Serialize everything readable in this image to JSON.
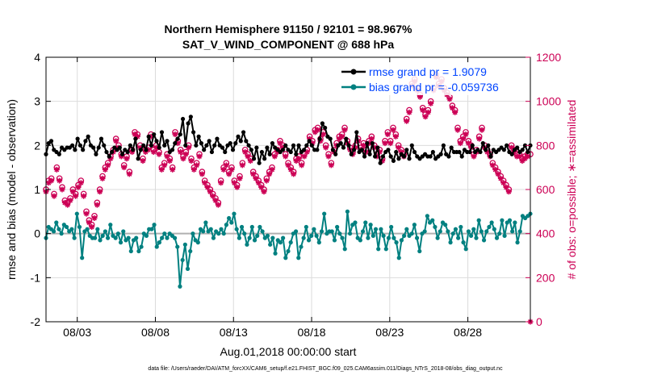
{
  "chart_data": {
    "type": "line",
    "title": "Northern Hemisphere 91150 / 92101 = 98.967%",
    "subtitle": "SAT_V_WIND_COMPONENT @ 688 hPa",
    "xlabel": "Aug.01,2018 00:00:00 start",
    "ylabel_left": "rmse and bias (model - observation)",
    "ylabel_right": "# of obs: o=possible; ∗=assimilated",
    "footer": "data file: /Users/raeder/DAI/ATM_forcXX/CAM6_setup/f.e21.FHIST_BGC.f09_025.CAM6assim.011/Diags_NTrS_2018-08/obs_diag_output.nc",
    "x_tick_labels": [
      "08/03",
      "08/08",
      "08/13",
      "08/18",
      "08/23",
      "08/28"
    ],
    "x_tick_days": [
      3,
      8,
      13,
      18,
      23,
      28
    ],
    "xlim_days": [
      1,
      32
    ],
    "ylim_left": [
      -2,
      4
    ],
    "y_ticks_left": [
      "-2",
      "-1",
      "0",
      "1",
      "2",
      "3",
      "4"
    ],
    "ylim_right": [
      0,
      1200
    ],
    "y_ticks_right": [
      "0",
      "200",
      "400",
      "600",
      "800",
      "1000",
      "1200"
    ],
    "zero_line": 0,
    "legend": {
      "placement": "top-right",
      "rmse_label": "rmse grand pr = 1.9079",
      "bias_label": "bias grand pr = -0.059736"
    },
    "colors": {
      "rmse": "#000000",
      "bias": "#008080",
      "obs": "#cc0055",
      "legend_text": "#0044ff"
    },
    "series": [
      {
        "name": "rmse",
        "values": [
          1.8,
          2.05,
          2.1,
          1.9,
          1.85,
          1.8,
          1.95,
          1.9,
          1.95,
          1.95,
          2.0,
          1.9,
          2.15,
          2.0,
          1.9,
          2.1,
          2.2,
          2.0,
          1.95,
          1.8,
          1.95,
          2.15,
          2.0,
          1.85,
          1.75,
          1.85,
          1.95,
          1.9,
          1.95,
          1.8,
          1.9,
          1.85,
          2.0,
          1.9,
          2.15,
          1.7,
          1.9,
          2.0,
          1.9,
          2.2,
          2.0,
          2.25,
          2.1,
          1.95,
          2.3,
          2.0,
          2.1,
          1.85,
          1.9,
          2.05,
          2.15,
          2.25,
          2.6,
          2.0,
          2.5,
          2.65,
          2.3,
          2.0,
          2.2,
          2.05,
          1.9,
          2.0,
          2.1,
          1.85,
          2.0,
          2.15,
          2.0,
          1.95,
          1.85,
          2.0,
          2.05,
          1.9,
          2.05,
          2.2,
          2.1,
          2.3,
          2.1,
          2.0,
          1.9,
          1.7,
          1.95,
          1.6,
          1.85,
          1.7,
          1.95,
          1.8,
          2.05,
          1.95,
          1.9,
          1.85,
          1.9,
          2.0,
          1.9,
          1.85,
          2.0,
          1.8,
          2.0,
          1.85,
          1.9,
          2.0,
          2.1,
          2.0,
          1.9,
          1.9,
          2.15,
          2.5,
          2.4,
          2.2,
          2.15,
          1.9,
          1.8,
          2.0,
          2.05,
          1.95,
          2.15,
          2.0,
          1.8,
          1.9,
          2.3,
          1.85,
          1.9,
          1.75,
          2.05,
          1.8,
          2.05,
          1.75,
          1.95,
          1.6,
          1.75,
          1.85,
          1.9,
          1.75,
          1.65,
          1.85,
          1.7,
          1.8,
          1.75,
          1.9,
          1.7,
          2.0,
          1.85,
          1.75,
          1.7,
          1.75,
          1.8,
          1.75,
          1.75,
          1.85,
          1.7,
          1.75,
          1.8,
          2.0,
          1.8,
          1.75,
          1.95,
          1.85,
          1.85,
          1.85,
          1.75,
          1.9,
          1.85,
          1.85,
          2.0,
          1.85,
          1.9,
          1.85,
          2.05,
          1.9,
          2.0,
          1.75,
          1.9,
          1.85,
          1.9,
          1.95,
          1.9,
          2.0,
          1.85,
          1.8,
          1.9,
          1.95,
          1.85,
          1.9,
          2.0,
          1.85,
          2.0
        ]
      },
      {
        "name": "bias",
        "values": [
          -0.1,
          0.15,
          0.1,
          0.05,
          0.25,
          0.1,
          0.0,
          0.2,
          0.15,
          0.05,
          0.1,
          -0.1,
          0.45,
          0.15,
          -0.55,
          0.05,
          0.1,
          -0.05,
          -0.1,
          -0.1,
          0.1,
          -0.15,
          -0.05,
          0.05,
          -0.1,
          0.2,
          -0.05,
          -0.1,
          0.0,
          -0.2,
          0.05,
          -0.15,
          -0.1,
          -0.4,
          -0.15,
          -0.1,
          -0.4,
          -0.3,
          0.0,
          -0.05,
          0.1,
          0.1,
          0.2,
          -0.3,
          -0.2,
          -0.1,
          0.0,
          -0.1,
          0.0,
          -0.05,
          -0.1,
          -0.3,
          -1.2,
          -0.6,
          -0.25,
          -0.8,
          -0.4,
          0.0,
          -0.15,
          -0.2,
          0.1,
          0.05,
          0.25,
          0.05,
          0.1,
          -0.1,
          0.05,
          0.0,
          0.1,
          0.0,
          0.2,
          0.35,
          0.25,
          0.45,
          0.1,
          -0.1,
          0.15,
          0.0,
          -0.25,
          -0.1,
          0.15,
          -0.15,
          -0.05,
          0.15,
          0.05,
          -0.1,
          -0.05,
          -0.25,
          -0.1,
          -0.45,
          -0.15,
          -0.2,
          -0.1,
          -0.55,
          -0.4,
          -0.2,
          0.0,
          0.05,
          -0.55,
          -0.3,
          -0.1,
          0.15,
          -0.15,
          -0.05,
          0.1,
          -0.05,
          -0.2,
          0.05,
          0.45,
          0.0,
          0.05,
          0.05,
          -0.15,
          0.15,
          0.0,
          -0.1,
          -0.35,
          0.5,
          0.0,
          0.2,
          0.25,
          -0.1,
          -0.15,
          0.05,
          0.25,
          -0.1,
          0.2,
          -0.05,
          0.1,
          -0.35,
          0.1,
          -0.05,
          -0.35,
          -0.1,
          0.15,
          -0.1,
          -0.2,
          -0.55,
          -0.15,
          -0.05,
          0.1,
          -0.05,
          0.0,
          0.2,
          -0.1,
          -0.4,
          0.0,
          0.05,
          0.4,
          0.25,
          0.3,
          0.15,
          -0.1,
          0.05,
          0.25,
          0.2,
          0.05,
          -0.2,
          0.0,
          0.1,
          -0.1,
          0.15,
          -0.2,
          -0.35,
          0.05,
          -0.05,
          0.1,
          -0.1,
          0.3,
          0.05,
          -0.15,
          0.05,
          0.15,
          0.25,
          0.1,
          -0.1,
          0.0,
          0.3,
          -0.05,
          0.25,
          0.3,
          0.05,
          0.25,
          -0.2,
          0.05,
          0.4,
          0.35,
          0.4,
          0.45
        ]
      },
      {
        "name": "obs_possible",
        "values": [
          600,
          640,
          650,
          580,
          700,
          650,
          610,
          550,
          540,
          560,
          600,
          580,
          620,
          640,
          580,
          500,
          460,
          440,
          480,
          540,
          600,
          660,
          700,
          720,
          750,
          780,
          830,
          800,
          760,
          710,
          750,
          680,
          780,
          860,
          850,
          800,
          740,
          780,
          790,
          850,
          780,
          800,
          770,
          700,
          720,
          760,
          740,
          700,
          860,
          820,
          780,
          750,
          770,
          800,
          740,
          700,
          720,
          760,
          680,
          640,
          620,
          600,
          580,
          560,
          540,
          640,
          700,
          720,
          680,
          700,
          640,
          620,
          660,
          720,
          780,
          760,
          740,
          680,
          660,
          640,
          620,
          600,
          650,
          680,
          700,
          760,
          780,
          820,
          800,
          760,
          720,
          700,
          680,
          740,
          750,
          720,
          760,
          780,
          840,
          820,
          870,
          880,
          830,
          860,
          800,
          760,
          720,
          780,
          810,
          840,
          850,
          880,
          820,
          790,
          770,
          800,
          830,
          790,
          810,
          780,
          820,
          840,
          800,
          760,
          780,
          740,
          820,
          860,
          820,
          880,
          850,
          800,
          780,
          760,
          920,
          960,
          1080,
          1100,
          1060,
          1030,
          970,
          940,
          960,
          1000,
          1060,
          1120,
          1080,
          1100,
          1060,
          1040,
          1020,
          980,
          960,
          880,
          820,
          840,
          860,
          820,
          800,
          760,
          780,
          840,
          880,
          800,
          780,
          760,
          720,
          700,
          680,
          660,
          640,
          620,
          600,
          800,
          780,
          760,
          760,
          740,
          750,
          760,
          760
        ]
      },
      {
        "name": "obs_assimilated",
        "values": [
          590,
          630,
          640,
          570,
          690,
          640,
          600,
          540,
          530,
          550,
          590,
          570,
          610,
          630,
          570,
          490,
          450,
          430,
          470,
          530,
          590,
          650,
          690,
          710,
          740,
          770,
          820,
          790,
          750,
          700,
          740,
          670,
          770,
          850,
          840,
          790,
          730,
          770,
          780,
          840,
          770,
          790,
          760,
          690,
          710,
          750,
          730,
          690,
          850,
          810,
          770,
          740,
          760,
          790,
          730,
          690,
          710,
          750,
          670,
          630,
          610,
          590,
          570,
          550,
          530,
          630,
          690,
          710,
          670,
          690,
          630,
          610,
          650,
          710,
          770,
          750,
          730,
          670,
          650,
          630,
          610,
          590,
          640,
          670,
          690,
          750,
          770,
          810,
          790,
          750,
          710,
          690,
          670,
          730,
          740,
          710,
          750,
          770,
          830,
          810,
          860,
          870,
          820,
          850,
          790,
          750,
          710,
          770,
          800,
          830,
          840,
          870,
          810,
          780,
          760,
          790,
          820,
          780,
          800,
          770,
          810,
          830,
          790,
          750,
          770,
          730,
          810,
          850,
          810,
          870,
          840,
          790,
          770,
          750,
          910,
          950,
          1070,
          1090,
          1050,
          1020,
          960,
          930,
          950,
          990,
          1050,
          1110,
          1070,
          1090,
          1050,
          1030,
          1010,
          970,
          950,
          870,
          810,
          830,
          850,
          810,
          790,
          750,
          770,
          830,
          870,
          790,
          770,
          750,
          710,
          690,
          670,
          650,
          630,
          610,
          590,
          790,
          770,
          750,
          750,
          730,
          740,
          750,
          0
        ]
      }
    ]
  }
}
